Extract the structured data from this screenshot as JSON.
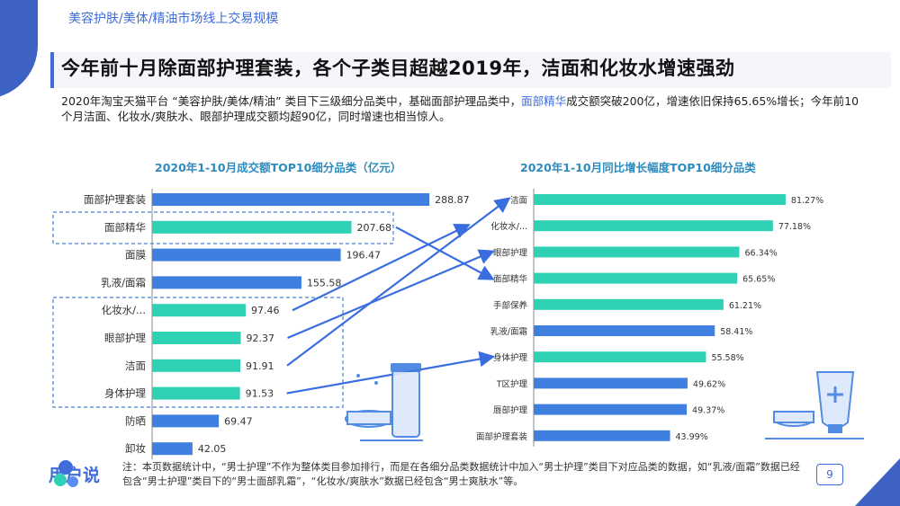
{
  "header": {
    "topic": "美容护肤/美体/精油市场线上交易规模",
    "title": "今年前十月除面部护理套装，各个子类目超越2019年，洁面和化妆水增速强劲",
    "lead_part1": "2020年淘宝天猫平台 “美容护肤/美体/精油” 类目下三级细分品类中，基础面部护理品类中，",
    "lead_highlight": "面部精华",
    "lead_part2": "成交额突破200亿，增速依旧保持65.65%增长；今年前10个月洁面、化妆水/爽肤水、眼部护理成交额均超90亿，同时增速也相当惊人。"
  },
  "chart_data": [
    {
      "type": "bar",
      "orientation": "horizontal",
      "title": "2020年1-10月成交额TOP10细分品类（亿元）",
      "categories": [
        "面部护理套装",
        "面部精华",
        "面膜",
        "乳液/面霜",
        "化妆水/...",
        "眼部护理",
        "洁面",
        "身体护理",
        "防晒",
        "卸妆"
      ],
      "values": [
        288.87,
        207.68,
        196.47,
        155.58,
        97.46,
        92.37,
        91.91,
        91.53,
        69.47,
        42.05
      ],
      "value_labels": [
        "288.87",
        "207.68",
        "196.47",
        "155.58",
        "97.46",
        "92.37",
        "91.91",
        "91.53",
        "69.47",
        "42.05"
      ],
      "highlighted": [
        false,
        true,
        false,
        false,
        true,
        true,
        true,
        true,
        false,
        false
      ],
      "xlim": [
        0,
        300
      ]
    },
    {
      "type": "bar",
      "orientation": "horizontal",
      "title": "2020年1-10月同比增长幅度TOP10细分品类",
      "categories": [
        "洁面",
        "化妆水/...",
        "眼部护理",
        "面部精华",
        "手部保养",
        "乳液/面霜",
        "身体护理",
        "T区护理",
        "唇部护理",
        "面部护理套装"
      ],
      "values": [
        81.27,
        77.18,
        66.34,
        65.65,
        61.21,
        58.41,
        55.58,
        49.62,
        49.37,
        43.99
      ],
      "value_labels": [
        "81.27%",
        "77.18%",
        "66.34%",
        "65.65%",
        "61.21%",
        "58.41%",
        "55.58%",
        "49.62%",
        "49.37%",
        "43.99%"
      ],
      "highlighted": [
        true,
        true,
        true,
        true,
        true,
        false,
        true,
        false,
        false,
        false
      ],
      "xlim": [
        0,
        90
      ]
    }
  ],
  "links": [
    {
      "from": "面部精华",
      "to": "面部精华"
    },
    {
      "from": "化妆水/...",
      "to": "化妆水/..."
    },
    {
      "from": "眼部护理",
      "to": "眼部护理"
    },
    {
      "from": "洁面",
      "to": "洁面"
    },
    {
      "from": "身体护理",
      "to": "身体护理"
    }
  ],
  "colors": {
    "blue_bar": "#3f7fe0",
    "teal_bar": "#2fd1b4",
    "arrow": "#3a6ee0",
    "box": "#4a7fd8"
  },
  "footer": {
    "logo": "用户说",
    "note": "注：本页数据统计中，“男士护理”不作为整体类目参加排行，而是在各细分品类数据统计中加入“男士护理”类目下对应品类的数据，如“乳液/面霜”数据已经包含“男士护理”类目下的“男士面部乳霜”，“化妆水/爽肤水”数据已经包含“男士爽肤水”等。",
    "page": "9"
  }
}
